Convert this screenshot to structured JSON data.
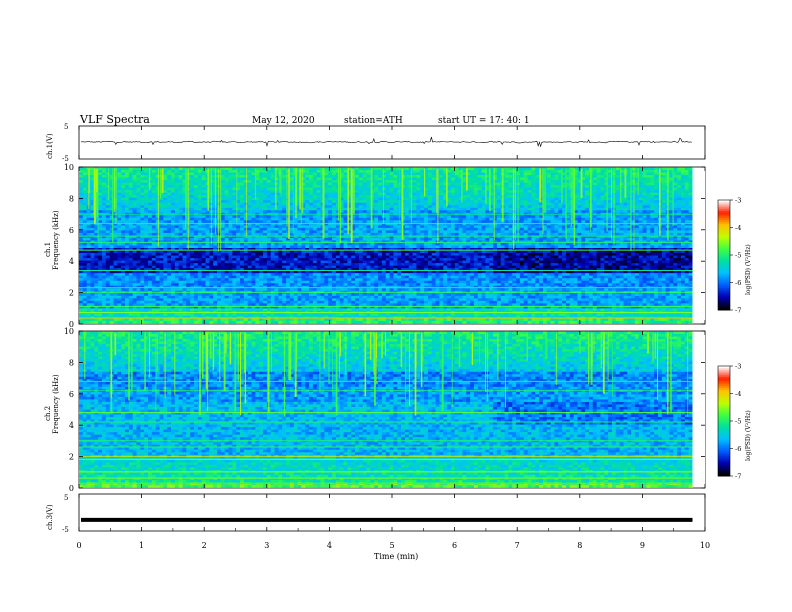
{
  "header": {
    "title": "VLF  Spectra",
    "date": "May 12, 2020",
    "station": "station=ATH",
    "start": "start  UT  =   17: 40: 1"
  },
  "chart_data": {
    "type": "heatmap",
    "xlabel": "Time  (min)",
    "xlim": [
      0,
      10
    ],
    "xticks": [
      "0",
      "1",
      "2",
      "3",
      "4",
      "5",
      "6",
      "7",
      "8",
      "9",
      "10"
    ],
    "panels": [
      {
        "name": "ch1-waveform",
        "ylabel": "ch.1(V)",
        "ylim": [
          -5,
          5
        ],
        "yticks": [
          "5",
          "-5"
        ]
      },
      {
        "name": "ch1-spectrogram",
        "ylabel_top": "ch.1",
        "ylabel": "Frequency  (kHz)",
        "ylim": [
          0,
          10
        ],
        "yticks": [
          "0",
          "2",
          "4",
          "6",
          "8",
          "10"
        ]
      },
      {
        "name": "ch2-spectrogram",
        "ylabel_top": "ch.2",
        "ylabel": "Frequency  (kHz)",
        "ylim": [
          0,
          10
        ],
        "yticks": [
          "0",
          "2",
          "4",
          "6",
          "8",
          "10"
        ]
      },
      {
        "name": "ch3-waveform",
        "ylabel": "ch.3(V)",
        "ylim": [
          -5,
          5
        ],
        "yticks": [
          "5",
          "-5"
        ]
      }
    ],
    "colorbar": {
      "label": "log(PSD) (V²/Hz)",
      "ticks": [
        "-3",
        "-4",
        "-5",
        "-6",
        "-7"
      ],
      "range": [
        -7,
        -3
      ],
      "colors": [
        "#000000",
        "#0000b4",
        "#0060ff",
        "#00c0ff",
        "#00e0a0",
        "#40ff40",
        "#c0ff00",
        "#ffc000",
        "#ff2000",
        "#ffffff"
      ]
    },
    "data_end_min": 9.8,
    "ch1_band_change_min": 6.6,
    "ch2_band_change_min": 6.6,
    "ch3_level_v": -2
  }
}
